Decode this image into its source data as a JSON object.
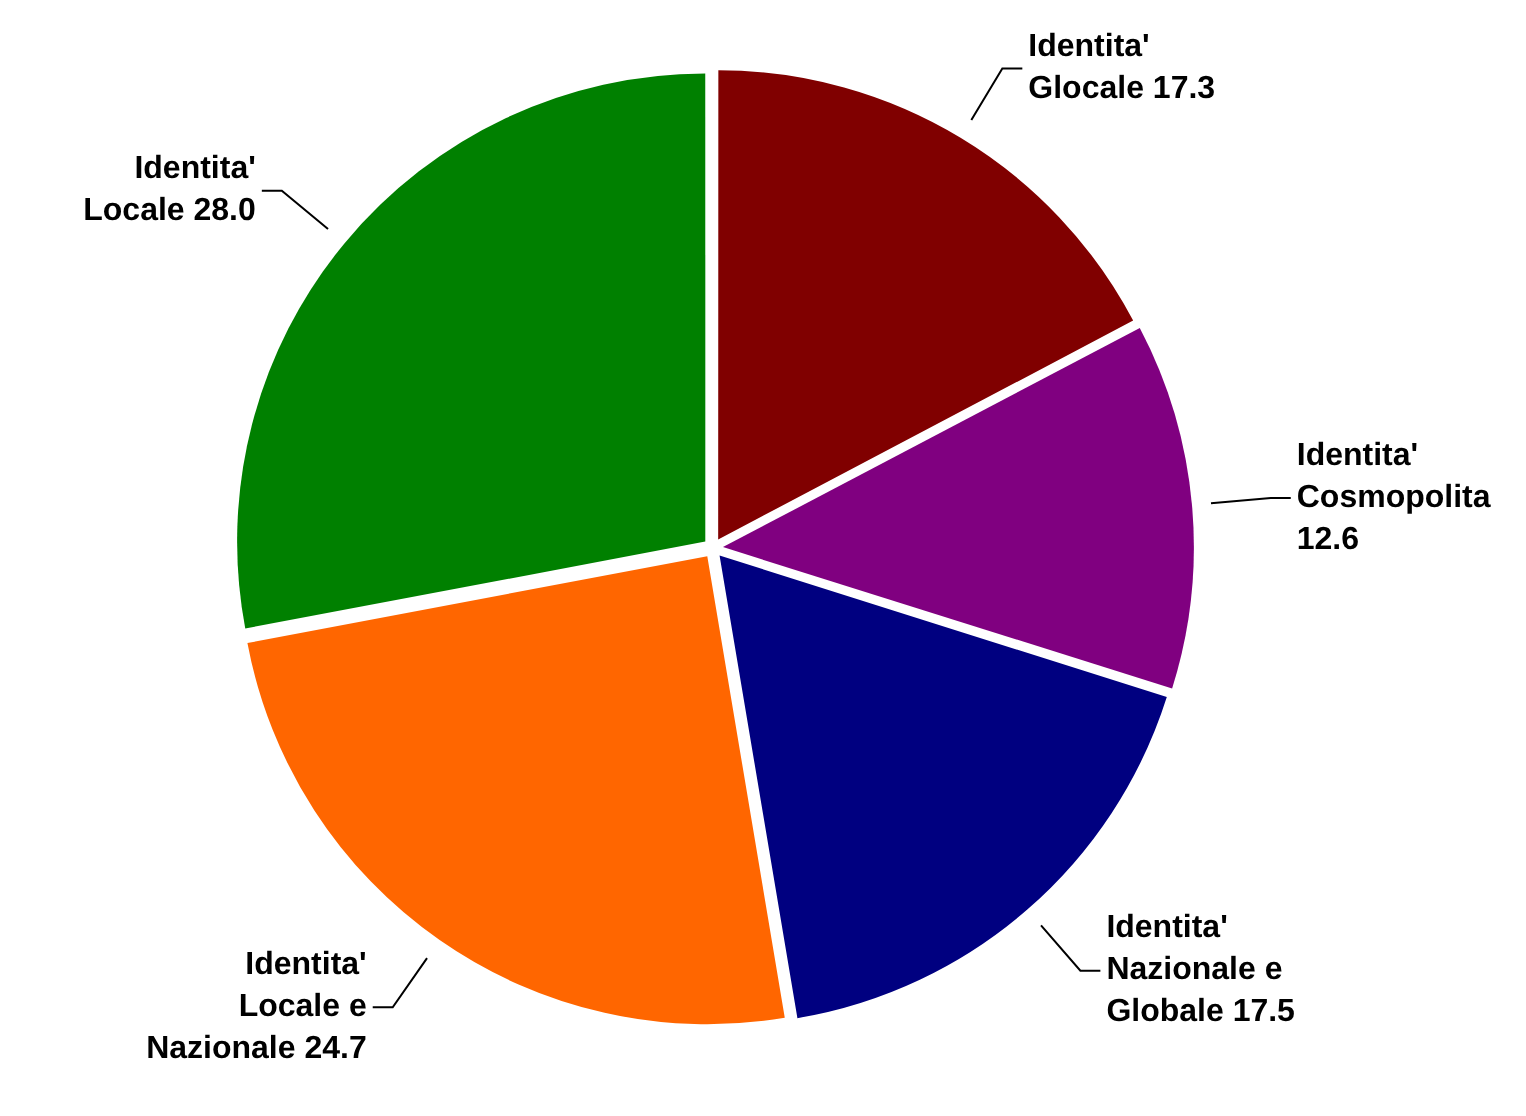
{
  "chart_data": {
    "type": "pie",
    "categories": [
      "Identita' Glocale",
      "Identita' Cosmopolita",
      "Identita' Nazionale e Globale",
      "Identita' Locale e Nazionale",
      "Identita' Locale"
    ],
    "values": [
      17.3,
      12.6,
      17.5,
      24.7,
      28.0
    ],
    "value_labels": [
      "17.3",
      "12.6",
      "17.5",
      "24.7",
      "28.0"
    ],
    "colors": [
      "#800000",
      "#800080",
      "#000080",
      "#ff6600",
      "#008000"
    ],
    "legend": false
  }
}
